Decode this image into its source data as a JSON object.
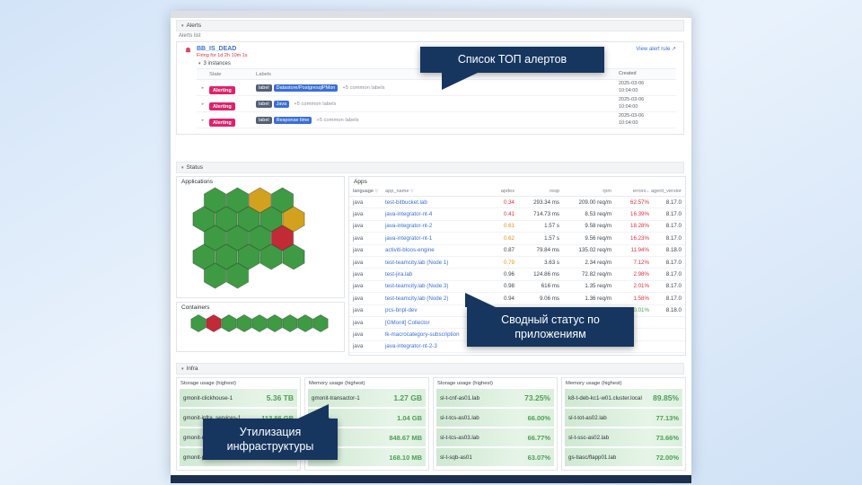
{
  "icons": {
    "chevron_down": "▾",
    "chevron_right": "▸",
    "external_link": "↗",
    "sort": "▽",
    "sort_desc": "↓"
  },
  "colors": {
    "callout_bg": "#16365f",
    "alerting_badge": "#e0226c",
    "link": "#3a70d4",
    "bar_green": "#4d9f55"
  },
  "callouts": {
    "alerts": "Список ТОП алертов",
    "status_line1": "Сводный статус по",
    "status_line2": "приложениям",
    "infra_line1": "Утилизация",
    "infra_line2": "инфраструктуры"
  },
  "alerts": {
    "section_title": "Alerts",
    "panel_title": "Alerts list",
    "rule_name": "BB_IS_DEAD",
    "firing_text": "Firing for 1d 2h 10m 1s",
    "view_rule": "View alert rule",
    "instances_label": "3 instances",
    "columns": {
      "state": "State",
      "labels": "Labels",
      "created": "Created"
    },
    "rows": [
      {
        "state": "Alerting",
        "label_key": "label",
        "label_value": "Datastore/PostgresqlPMon",
        "extra": "+5 common labels",
        "created_date": "2025-03-06",
        "created_time": "10:04:00"
      },
      {
        "state": "Alerting",
        "label_key": "label",
        "label_value": "Java",
        "extra": "+5 common labels",
        "created_date": "2025-03-06",
        "created_time": "10:04:00"
      },
      {
        "state": "Alerting",
        "label_key": "label",
        "label_value": "Response time",
        "extra": "+5 common labels",
        "created_date": "2025-03-06",
        "created_time": "10:04:00"
      }
    ]
  },
  "status": {
    "section_title": "Status",
    "applications_title": "Applications",
    "containers_title": "Containers",
    "apps_title": "Apps",
    "hex_colors": {
      "g": "#3e9b43",
      "y": "#d2a21e",
      "r": "#c22a35"
    },
    "applications_hex_rows": [
      [
        "g",
        "g",
        "y",
        "g"
      ],
      [
        "g",
        "g",
        "g",
        "g",
        "y"
      ],
      [
        "g",
        "g",
        "g",
        "r"
      ],
      [
        "g",
        "g",
        "g",
        "g",
        "g"
      ],
      [
        "g",
        "g"
      ]
    ],
    "containers_hex_row": [
      "g",
      "r",
      "g",
      "g",
      "g",
      "g",
      "g",
      "g",
      "g"
    ],
    "apps_columns": [
      "language",
      "app_name",
      "apdex",
      "resp",
      "rpm",
      "errors",
      "agent_version"
    ],
    "apps_rows": [
      {
        "language": "java",
        "app_name": "test-bitbucket.lab",
        "apdex": "0.34",
        "apdex_color": "red",
        "resp": "293.34 ms",
        "rpm": "209.00 req/m",
        "errors": "62.57%",
        "errors_color": "red",
        "agent": "8.17.0"
      },
      {
        "language": "java",
        "app_name": "java-integrator-nt-4",
        "apdex": "0.41",
        "apdex_color": "red",
        "resp": "714.73 ms",
        "rpm": "8.53 req/m",
        "errors": "16.39%",
        "errors_color": "red",
        "agent": "8.17.0"
      },
      {
        "language": "java",
        "app_name": "java-integrator-nt-2",
        "apdex": "0.61",
        "apdex_color": "orange",
        "resp": "1.57 s",
        "rpm": "9.58 req/m",
        "errors": "18.28%",
        "errors_color": "red",
        "agent": "8.17.0"
      },
      {
        "language": "java",
        "app_name": "java-integrator-nt-1",
        "apdex": "0.62",
        "apdex_color": "orange",
        "resp": "1.57 s",
        "rpm": "9.56 req/m",
        "errors": "16.23%",
        "errors_color": "red",
        "agent": "8.17.0"
      },
      {
        "language": "java",
        "app_name": "activiti-bloos-engine",
        "apdex": "0.87",
        "apdex_color": "dark",
        "resp": "79.84 ms",
        "rpm": "135.02 req/m",
        "errors": "11.94%",
        "errors_color": "red",
        "agent": "8.18.0"
      },
      {
        "language": "java",
        "app_name": "test-teamcity.lab (Node 1)",
        "apdex": "0.79",
        "apdex_color": "orange",
        "resp": "3.63 s",
        "rpm": "2.34 req/m",
        "errors": "7.12%",
        "errors_color": "red",
        "agent": "8.17.0"
      },
      {
        "language": "java",
        "app_name": "test-jira.lab",
        "apdex": "0.96",
        "apdex_color": "dark",
        "resp": "124.86 ms",
        "rpm": "72.82 req/m",
        "errors": "2.98%",
        "errors_color": "red",
        "agent": "8.17.0"
      },
      {
        "language": "java",
        "app_name": "test-teamcity.lab (Node 3)",
        "apdex": "0.98",
        "apdex_color": "dark",
        "resp": "616 ms",
        "rpm": "1.35 req/m",
        "errors": "2.01%",
        "errors_color": "red",
        "agent": "8.17.0"
      },
      {
        "language": "java",
        "app_name": "test-teamcity.lab (Node 2)",
        "apdex": "0.94",
        "apdex_color": "dark",
        "resp": "9.06 ms",
        "rpm": "1.36 req/m",
        "errors": "1.58%",
        "errors_color": "red",
        "agent": "8.17.0"
      },
      {
        "language": "java",
        "app_name": "pcs-bnpl-dev",
        "apdex": "",
        "apdex_color": "dark",
        "resp": "6.15 ms",
        "rpm": "",
        "errors": "0.01%",
        "errors_color": "green",
        "agent": "8.18.0"
      },
      {
        "language": "java",
        "app_name": "[GMonit] Collector",
        "apdex": "",
        "apdex_color": "dark",
        "resp": "",
        "rpm": "",
        "errors": "",
        "errors_color": "dark",
        "agent": ""
      },
      {
        "language": "java",
        "app_name": "lk-macrocategory-subscription",
        "apdex": "",
        "apdex_color": "dark",
        "resp": "",
        "rpm": "",
        "errors": "",
        "errors_color": "dark",
        "agent": ""
      },
      {
        "language": "java",
        "app_name": "java-integrator-nt-2-3",
        "apdex": "",
        "apdex_color": "dark",
        "resp": "",
        "rpm": "",
        "errors": "",
        "errors_color": "dark",
        "agent": ""
      },
      {
        "language": "java",
        "app_name": "lk-authorization",
        "apdex": "",
        "apdex_color": "dark",
        "resp": "",
        "rpm": "",
        "errors": "",
        "errors_color": "dark",
        "agent": ""
      }
    ]
  },
  "infra": {
    "section_title": "Infra",
    "panels": [
      {
        "title": "Storage usage (highest)",
        "rows": [
          {
            "name": "gmonit-clickhouse-1",
            "value": "5.36 TB"
          },
          {
            "name": "gmonit-infra_services-1",
            "value": "113.66 GB"
          },
          {
            "name": "gmonit-n",
            "value": ""
          },
          {
            "name": "gmonit-p",
            "value": ""
          }
        ]
      },
      {
        "title": "Memory usage (highest)",
        "rows": [
          {
            "name": "gmonit-transactor-1",
            "value": "1.27 GB"
          },
          {
            "name": "gmonit-",
            "value": "1.04 GB"
          },
          {
            "name": "",
            "value": "848.67 MB"
          },
          {
            "name": "",
            "value": "168.10 MB"
          }
        ]
      },
      {
        "title": "Storage usage (highest)",
        "rows": [
          {
            "name": "sl-t-cnf-as01.lab",
            "value": "73.25%"
          },
          {
            "name": "sl-t-tcs-as01.lab",
            "value": "66.00%"
          },
          {
            "name": "sl-t-tcs-as03.lab",
            "value": "66.77%"
          },
          {
            "name": "sl-t-sqb-as01",
            "value": "63.07%"
          }
        ]
      },
      {
        "title": "Memory usage (highest)",
        "rows": [
          {
            "name": "k8-t-deb-kc1-w01.cluster.local",
            "value": "89.85%"
          },
          {
            "name": "sl-t-tot-as02.lab",
            "value": "77.13%"
          },
          {
            "name": "sl-t-ssc-as02.lab",
            "value": "73.66%"
          },
          {
            "name": "gs-tiasc/flapp01.lab",
            "value": "72.00%"
          }
        ]
      }
    ]
  }
}
